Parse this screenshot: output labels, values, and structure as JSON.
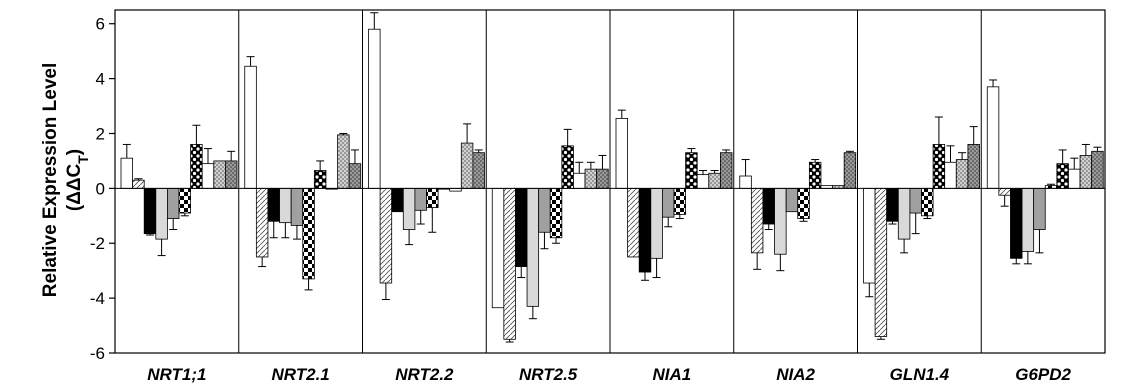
{
  "chart_data": {
    "type": "bar",
    "ylabel_line1": "Relative Expression Level",
    "ylabel_line2_main": "(ΔΔC",
    "ylabel_line2_sub": "T",
    "ylabel_line2_close": ")",
    "ylim": [
      -6,
      6.5
    ],
    "yticks": [
      "-6",
      "-4",
      "-2",
      "0",
      "2",
      "4",
      "6"
    ],
    "ytick_values": [
      -6,
      -4,
      -2,
      0,
      2,
      4,
      6
    ],
    "grid": false,
    "categories": [
      "NRT1;1",
      "NRT2.1",
      "NRT2.2",
      "NRT2.5",
      "NIA1",
      "NIA2",
      "GLN1.4",
      "G6PD2"
    ],
    "series": [
      {
        "fill": "#ffffff",
        "pattern": "none",
        "values": [
          1.1,
          4.45,
          5.8,
          -4.35,
          2.55,
          0.45,
          -3.45,
          3.7
        ]
      },
      {
        "fill": "#ffffff",
        "pattern": "diagonal",
        "values": [
          0.3,
          -2.5,
          -3.45,
          -5.5,
          -2.5,
          -2.35,
          -5.4,
          -0.25
        ]
      },
      {
        "fill": "#000000",
        "pattern": "none",
        "values": [
          -1.65,
          -1.2,
          -0.85,
          -2.85,
          -3.05,
          -1.3,
          -1.2,
          -2.55
        ]
      },
      {
        "fill": "#d9d9d9",
        "pattern": "none",
        "values": [
          -1.85,
          -1.25,
          -1.5,
          -4.3,
          -2.55,
          -2.4,
          -1.85,
          -2.3
        ]
      },
      {
        "fill": "#a0a0a0",
        "pattern": "none",
        "values": [
          -1.1,
          -1.35,
          -0.8,
          -1.6,
          -1.05,
          -0.85,
          -0.9,
          -1.5
        ]
      },
      {
        "fill": "#ffffff",
        "pattern": "checker",
        "values": [
          -0.9,
          -3.3,
          -0.7,
          -1.8,
          -0.95,
          -1.1,
          -1.0,
          0.1
        ]
      },
      {
        "fill": "#000000",
        "pattern": "whitedots",
        "values": [
          1.6,
          0.65,
          0.0,
          1.55,
          1.3,
          0.95,
          1.6,
          0.9
        ]
      },
      {
        "fill": "#ffffff",
        "pattern": "none",
        "values": [
          0.9,
          0.0,
          -0.1,
          0.55,
          0.5,
          0.1,
          0.95,
          0.7
        ]
      },
      {
        "fill": "#c8c8c8",
        "pattern": "dots",
        "values": [
          1.0,
          1.95,
          1.65,
          0.7,
          0.55,
          0.1,
          1.05,
          1.2
        ]
      },
      {
        "fill": "#8c8c8c",
        "pattern": "dots",
        "values": [
          1.0,
          0.9,
          1.3,
          0.7,
          1.3,
          1.3,
          1.6,
          1.35
        ]
      }
    ],
    "errors": [
      [
        0.5,
        0.35,
        0.6,
        0.0,
        0.3,
        0.6,
        0.5,
        0.25
      ],
      [
        0.05,
        0.35,
        0.6,
        0.1,
        0.0,
        0.6,
        0.1,
        0.4
      ],
      [
        0.05,
        0.6,
        0.0,
        0.4,
        0.3,
        0.2,
        0.1,
        0.2
      ],
      [
        0.6,
        0.55,
        0.55,
        0.45,
        0.7,
        0.6,
        0.5,
        0.45
      ],
      [
        0.4,
        0.5,
        0.5,
        0.6,
        0.35,
        0.0,
        0.75,
        0.85
      ],
      [
        0.1,
        0.4,
        0.9,
        0.2,
        0.15,
        0.1,
        0.1,
        0.05
      ],
      [
        0.7,
        0.35,
        0.0,
        0.6,
        0.15,
        0.1,
        1.0,
        0.5
      ],
      [
        0.55,
        0.0,
        0.0,
        0.4,
        0.15,
        0.0,
        0.6,
        0.4
      ],
      [
        0.0,
        0.05,
        0.7,
        0.25,
        0.1,
        0.0,
        0.25,
        0.4
      ],
      [
        0.35,
        0.5,
        0.1,
        0.5,
        0.1,
        0.05,
        0.65,
        0.15
      ]
    ]
  }
}
